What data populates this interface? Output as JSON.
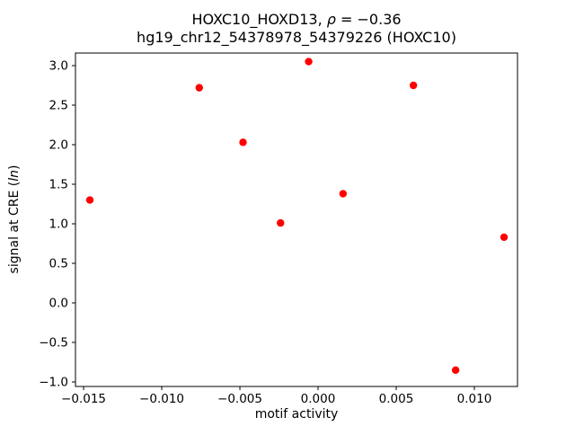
{
  "chart_data": {
    "type": "scatter",
    "title": "HOXC10_HOXD13, ρ = −0.36\nhg19_chr12_54378978_54379226 (HOXC10)",
    "title_line1_parts": {
      "prefix": "HOXC10_HOXD13, ",
      "italic": "ρ",
      "suffix": " = −0.36"
    },
    "title_line2": "hg19_chr12_54378978_54379226 (HOXC10)",
    "rho": -0.36,
    "xlabel": "motif activity",
    "ylabel": "signal at CRE (ln)",
    "ylabel_parts": {
      "prefix": "signal at CRE (",
      "italic": "ln",
      "suffix": ")"
    },
    "marker": {
      "shape": "circle",
      "color": "#ff0000",
      "radius": 4.2
    },
    "grid": false,
    "legend": null,
    "xlim": [
      -0.01552,
      0.01276
    ],
    "ylim": [
      -1.057,
      3.159
    ],
    "x_ticks": [
      -0.015,
      -0.01,
      -0.005,
      0.0,
      0.005,
      0.01
    ],
    "x_tick_labels": [
      "−0.015",
      "−0.010",
      "−0.005",
      "0.000",
      "0.005",
      "0.010"
    ],
    "y_ticks": [
      3.0,
      2.5,
      2.0,
      1.5,
      1.0,
      0.5,
      0.0,
      -0.5,
      -1.0
    ],
    "y_tick_labels": [
      "3.0",
      "2.5",
      "2.0",
      "1.5",
      "1.0",
      "0.5",
      "0.0",
      "−0.5",
      "−1.0"
    ],
    "points": [
      [
        -0.0146,
        1.3
      ],
      [
        -0.0076,
        2.72
      ],
      [
        -0.0048,
        2.03
      ],
      [
        -0.0024,
        1.01
      ],
      [
        -0.0006,
        3.05
      ],
      [
        0.0016,
        1.38
      ],
      [
        0.0061,
        2.75
      ],
      [
        0.0088,
        -0.85
      ],
      [
        0.0119,
        0.83
      ]
    ]
  }
}
